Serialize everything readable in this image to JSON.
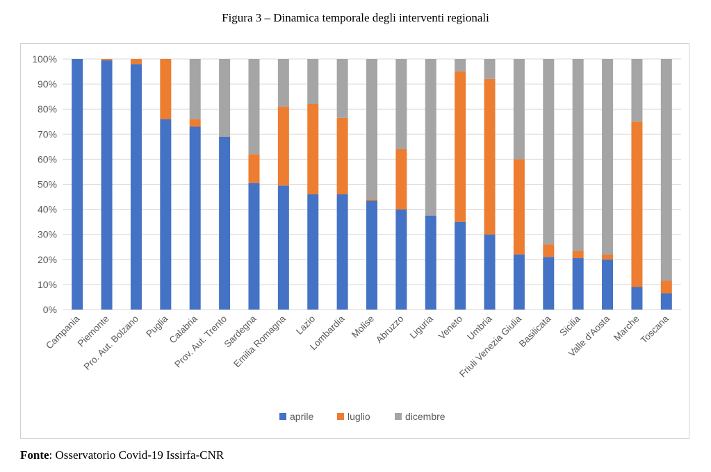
{
  "figure": {
    "title": "Figura 3 – Dinamica temporale degli interventi regionali",
    "source_label": "Fonte",
    "source_text": ": Osservatorio Covid-19 Issirfa-CNR"
  },
  "colors": {
    "aprile": "#4472c4",
    "luglio": "#ed7d31",
    "dicembre": "#a5a5a5",
    "grid": "#d9d9d9",
    "axis": "#595959"
  },
  "chart_data": {
    "type": "bar",
    "stacked": true,
    "title": "",
    "xlabel": "",
    "ylabel": "",
    "ylim": [
      0,
      100
    ],
    "yticks": [
      "0%",
      "10%",
      "20%",
      "30%",
      "40%",
      "50%",
      "60%",
      "70%",
      "80%",
      "90%",
      "100%"
    ],
    "grid": true,
    "legend": "bottom",
    "categories": [
      "Campania",
      "Piemonte",
      "Pro. Aut. Bolzano",
      "Puglia",
      "Calabria",
      "Prov. Aut. Trento",
      "Sardegna",
      "Emilia Romagna",
      "Lazio",
      "Lombardia",
      "Molise",
      "Abruzzo",
      "Liguria",
      "Veneto",
      "Umbria",
      "Friuli Venezia Giulia",
      "Basilicata",
      "Sicilia",
      "Valle d'Aosta",
      "Marche",
      "Toscana"
    ],
    "series": [
      {
        "name": "aprile",
        "values": [
          100,
          99.5,
          98,
          76,
          73,
          69,
          50.5,
          49.5,
          46,
          46,
          43.5,
          40,
          37.5,
          35,
          30,
          22,
          21,
          20.5,
          20,
          9,
          6.5
        ]
      },
      {
        "name": "luglio",
        "values": [
          0,
          0.5,
          2,
          24,
          3,
          0,
          11.5,
          31.5,
          36,
          30.5,
          0.5,
          24,
          0,
          60,
          62,
          38,
          5,
          3,
          2,
          66,
          5
        ]
      },
      {
        "name": "dicembre",
        "values": [
          0,
          0,
          0,
          0,
          24,
          31,
          38,
          19,
          18,
          23.5,
          56,
          36,
          62.5,
          5,
          8,
          40,
          74,
          76.5,
          78,
          25,
          88.5
        ]
      }
    ]
  }
}
